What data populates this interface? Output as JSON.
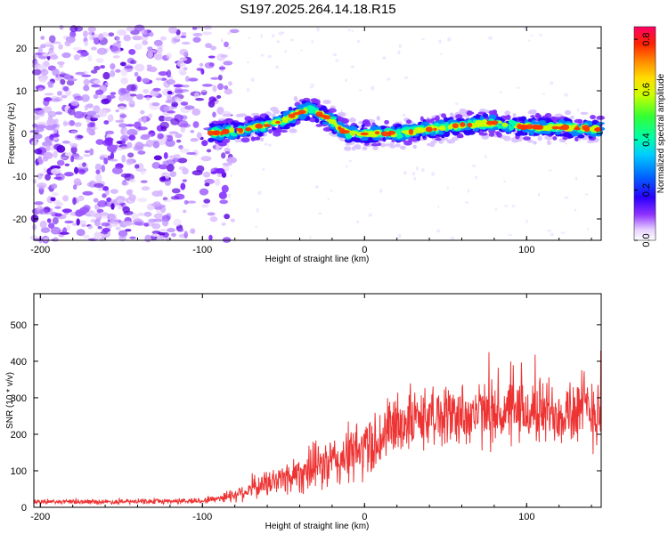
{
  "title": "S197.2025.264.14.18.R15",
  "chart_data": [
    {
      "type": "heatmap",
      "name": "spectrogram",
      "xlabel": "Height of straight line (km)",
      "ylabel": "Frequency (Hz)",
      "xlim": [
        -204,
        146
      ],
      "ylim": [
        -25,
        25
      ],
      "x_ticks": [
        -200,
        -100,
        0,
        100
      ],
      "y_ticks": [
        -20,
        -10,
        0,
        10,
        20
      ],
      "ridge": {
        "x": [
          -95,
          -80,
          -60,
          -50,
          -40,
          -35,
          -30,
          -25,
          -20,
          -15,
          -10,
          0,
          20,
          40,
          60,
          80,
          100,
          120,
          146
        ],
        "freq": [
          0,
          0.5,
          2,
          3,
          5,
          5.5,
          5,
          4,
          3,
          1,
          0,
          0,
          0,
          1,
          2,
          2.5,
          1.5,
          1.5,
          1
        ]
      },
      "noise_region_x": [
        -204,
        -90
      ],
      "colorbar": {
        "label": "Normalized spectral amplitude",
        "range": [
          0.0,
          0.85
        ],
        "ticks": [
          0.0,
          0.2,
          0.4,
          0.6,
          0.8
        ]
      }
    },
    {
      "type": "line",
      "name": "snr",
      "xlabel": "Height of straight line (km)",
      "ylabel": "SNR (10 * v/v)",
      "xlim": [
        -204,
        146
      ],
      "ylim": [
        0,
        585
      ],
      "x_ticks": [
        -200,
        -100,
        0,
        100
      ],
      "y_ticks": [
        0,
        100,
        200,
        300,
        400,
        500
      ],
      "series_color": "#ee3333",
      "envelope": {
        "x": [
          -204,
          -150,
          -100,
          -90,
          -80,
          -70,
          -60,
          -50,
          -40,
          -30,
          -20,
          -10,
          0,
          10,
          20,
          40,
          60,
          80,
          100,
          120,
          146
        ],
        "mean": [
          15,
          15,
          18,
          25,
          35,
          50,
          65,
          80,
          95,
          110,
          120,
          140,
          160,
          190,
          230,
          250,
          255,
          255,
          260,
          265,
          270
        ],
        "amplitude": [
          8,
          8,
          10,
          15,
          25,
          35,
          45,
          55,
          70,
          80,
          90,
          100,
          110,
          110,
          110,
          100,
          110,
          110,
          110,
          120,
          140
        ]
      }
    }
  ]
}
